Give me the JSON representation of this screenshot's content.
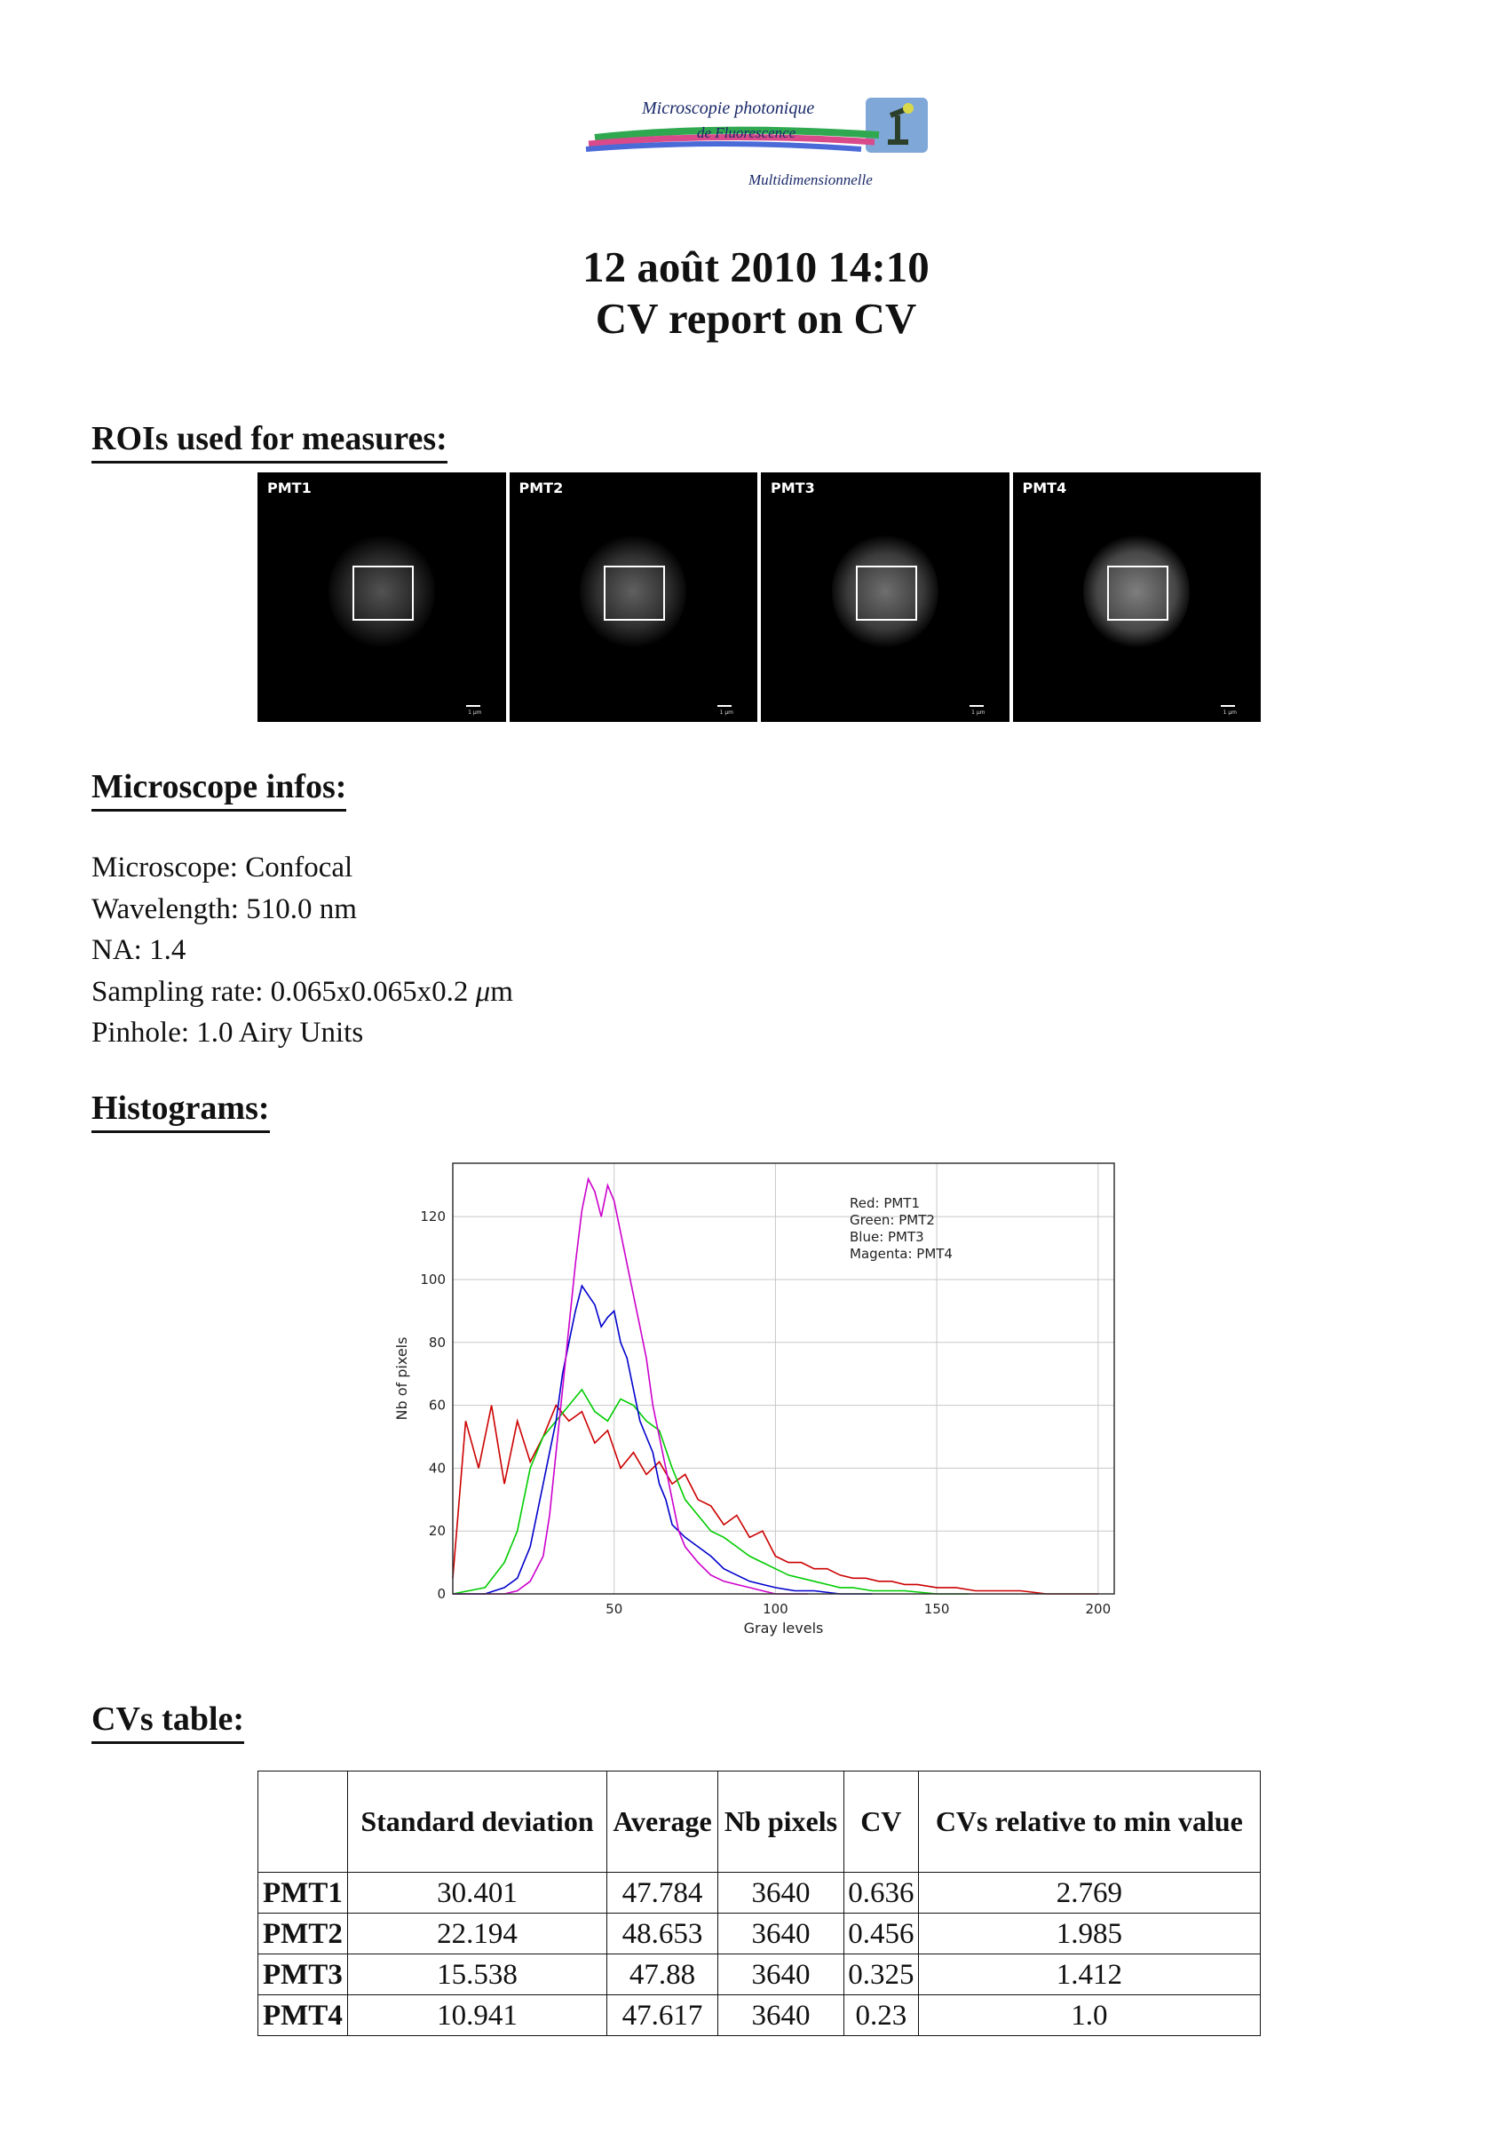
{
  "logo": {
    "line1": "Microscopie photonique",
    "line2": "de Fluorescence",
    "line3": "Multidimensionnelle"
  },
  "header": {
    "date": "12 août 2010 14:10",
    "report": "CV report on CV"
  },
  "sections": {
    "rois": "ROIs used for measures:",
    "microscope": "Microscope infos:",
    "histograms": "Histograms:",
    "cvs": "CVs table:"
  },
  "rois": [
    {
      "label": "PMT1",
      "scale": "1 µm"
    },
    {
      "label": "PMT2",
      "scale": "1 µm"
    },
    {
      "label": "PMT3",
      "scale": "1 µm"
    },
    {
      "label": "PMT4",
      "scale": "1 µm"
    }
  ],
  "microscope": {
    "type": "Microscope: Confocal",
    "wavelength": "Wavelength: 510.0 nm",
    "na": "NA: 1.4",
    "sampling_prefix": "Sampling rate: 0.065x0.065x0.2 ",
    "sampling_unit": "μ",
    "sampling_suffix": "m",
    "pinhole": "Pinhole: 1.0 Airy Units"
  },
  "chart_data": {
    "type": "line",
    "xlabel": "Gray levels",
    "ylabel": "Nb of pixels",
    "xlim": [
      0,
      205
    ],
    "ylim": [
      0,
      137
    ],
    "xticks": [
      50,
      100,
      150,
      200
    ],
    "yticks": [
      0,
      20,
      40,
      60,
      80,
      100,
      120
    ],
    "grid": true,
    "legend_placement": "top-right",
    "legend": [
      "Red: PMT1",
      "Green: PMT2",
      "Blue: PMT3",
      "Magenta: PMT4"
    ],
    "series": [
      {
        "name": "PMT1",
        "color": "#cc0000",
        "x": [
          0,
          4,
          8,
          12,
          16,
          20,
          24,
          28,
          32,
          36,
          40,
          44,
          48,
          52,
          56,
          60,
          64,
          68,
          72,
          76,
          80,
          84,
          88,
          92,
          96,
          100,
          104,
          108,
          112,
          116,
          120,
          124,
          128,
          132,
          136,
          140,
          144,
          150,
          156,
          162,
          168,
          176,
          184,
          192,
          200
        ],
        "y": [
          5,
          55,
          40,
          60,
          35,
          55,
          42,
          50,
          60,
          55,
          58,
          48,
          52,
          40,
          45,
          38,
          42,
          35,
          38,
          30,
          28,
          22,
          25,
          18,
          20,
          12,
          10,
          10,
          8,
          8,
          6,
          5,
          5,
          4,
          4,
          3,
          3,
          2,
          2,
          1,
          1,
          1,
          0,
          0,
          0
        ]
      },
      {
        "name": "PMT2",
        "color": "#00cc00",
        "x": [
          0,
          10,
          16,
          20,
          24,
          28,
          32,
          36,
          40,
          44,
          48,
          52,
          56,
          60,
          64,
          68,
          72,
          76,
          80,
          84,
          88,
          92,
          96,
          100,
          104,
          108,
          112,
          116,
          120,
          124,
          130,
          140,
          150,
          160
        ],
        "y": [
          0,
          2,
          10,
          20,
          40,
          50,
          55,
          60,
          65,
          58,
          55,
          62,
          60,
          55,
          52,
          40,
          30,
          25,
          20,
          18,
          15,
          12,
          10,
          8,
          6,
          5,
          4,
          3,
          2,
          2,
          1,
          1,
          0,
          0
        ]
      },
      {
        "name": "PMT3",
        "color": "#0000cc",
        "x": [
          0,
          10,
          16,
          20,
          24,
          28,
          30,
          32,
          34,
          36,
          38,
          40,
          42,
          44,
          46,
          48,
          50,
          52,
          54,
          56,
          58,
          60,
          62,
          64,
          66,
          68,
          72,
          76,
          80,
          84,
          88,
          92,
          96,
          100,
          106,
          112,
          120,
          130
        ],
        "y": [
          0,
          0,
          2,
          5,
          15,
          35,
          45,
          55,
          70,
          80,
          90,
          98,
          95,
          92,
          85,
          88,
          90,
          80,
          75,
          65,
          55,
          50,
          45,
          35,
          30,
          22,
          18,
          15,
          12,
          8,
          6,
          4,
          3,
          2,
          1,
          1,
          0,
          0
        ]
      },
      {
        "name": "PMT4",
        "color": "#cc00cc",
        "x": [
          0,
          16,
          20,
          24,
          28,
          30,
          32,
          34,
          36,
          38,
          40,
          42,
          44,
          46,
          48,
          50,
          52,
          54,
          56,
          58,
          60,
          62,
          64,
          66,
          68,
          70,
          72,
          76,
          80,
          84,
          88,
          92,
          96,
          100,
          110
        ],
        "y": [
          0,
          0,
          1,
          4,
          12,
          25,
          45,
          65,
          85,
          105,
          122,
          132,
          128,
          120,
          130,
          125,
          115,
          105,
          95,
          85,
          75,
          60,
          50,
          40,
          30,
          20,
          15,
          10,
          6,
          4,
          3,
          2,
          1,
          0,
          0
        ]
      }
    ]
  },
  "cv_table": {
    "headers": [
      "",
      "Standard deviation",
      "Average",
      "Nb pixels",
      "CV",
      "CVs relative to min value"
    ],
    "rows": [
      [
        "PMT1",
        "30.401",
        "47.784",
        "3640",
        "0.636",
        "2.769"
      ],
      [
        "PMT2",
        "22.194",
        "48.653",
        "3640",
        "0.456",
        "1.985"
      ],
      [
        "PMT3",
        "15.538",
        "47.88",
        "3640",
        "0.325",
        "1.412"
      ],
      [
        "PMT4",
        "10.941",
        "47.617",
        "3640",
        "0.23",
        "1.0"
      ]
    ]
  }
}
